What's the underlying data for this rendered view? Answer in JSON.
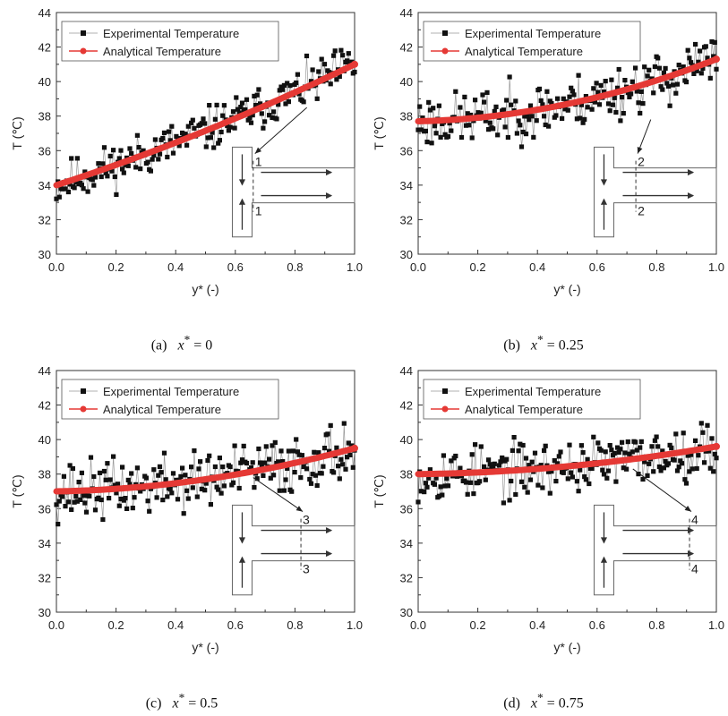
{
  "chart_data": [
    {
      "type": "scatter",
      "caption_id": "(a)",
      "caption_var": "x",
      "caption_value": "0",
      "xlabel": "y* (-)",
      "ylabel": "T (℃)",
      "xlim": [
        0,
        1
      ],
      "ylim": [
        30,
        44
      ],
      "xticks": [
        "0.0",
        "0.2",
        "0.4",
        "0.6",
        "0.8",
        "1.0"
      ],
      "yticks": [
        "30",
        "32",
        "34",
        "36",
        "38",
        "40",
        "42",
        "44"
      ],
      "legend": [
        "Experimental Temperature",
        "Analytical Temperature"
      ],
      "legend_position": "top-left",
      "analytical": {
        "a": 34.0,
        "b": 5.6,
        "c": 1.4
      },
      "experimental": {
        "noise": 0.45,
        "seed": 11
      },
      "marker": "1",
      "annot_target": [
        0.66,
        33.6
      ],
      "annot_arrow_from": [
        0.84,
        38.5
      ],
      "colors": {
        "experimental": "#111111",
        "analytical": "#e53935"
      }
    },
    {
      "type": "scatter",
      "caption_id": "(b)",
      "caption_var": "x",
      "caption_value": "0.25",
      "xlabel": "y* (-)",
      "ylabel": "T (℃)",
      "xlim": [
        0,
        1
      ],
      "ylim": [
        30,
        44
      ],
      "xticks": [
        "0.0",
        "0.2",
        "0.4",
        "0.6",
        "0.8",
        "1.0"
      ],
      "yticks": [
        "30",
        "32",
        "34",
        "36",
        "38",
        "40",
        "42",
        "44"
      ],
      "legend": [
        "Experimental Temperature",
        "Analytical Temperature"
      ],
      "legend_position": "top-left",
      "analytical": {
        "a": 37.7,
        "b": 0.4,
        "c": 3.2
      },
      "experimental": {
        "noise": 0.55,
        "seed": 23
      },
      "marker": "2",
      "annot_target": [
        0.73,
        34.2
      ],
      "annot_arrow_from": [
        0.78,
        37.8
      ],
      "colors": {
        "experimental": "#111111",
        "analytical": "#e53935"
      }
    },
    {
      "type": "scatter",
      "caption_id": "(c)",
      "caption_var": "x",
      "caption_value": "0.5",
      "xlabel": "y* (-)",
      "ylabel": "T (℃)",
      "xlim": [
        0,
        1
      ],
      "ylim": [
        30,
        44
      ],
      "xticks": [
        "0.0",
        "0.2",
        "0.4",
        "0.6",
        "0.8",
        "1.0"
      ],
      "yticks": [
        "30",
        "32",
        "34",
        "36",
        "38",
        "40",
        "42",
        "44"
      ],
      "legend": [
        "Experimental Temperature",
        "Analytical Temperature"
      ],
      "legend_position": "top-left",
      "analytical": {
        "a": 37.0,
        "b": 0.3,
        "c": 2.2
      },
      "experimental": {
        "noise": 0.6,
        "seed": 37
      },
      "marker": "3",
      "annot_target": [
        0.82,
        34.2
      ],
      "annot_arrow_from": [
        0.66,
        37.8
      ],
      "colors": {
        "experimental": "#111111",
        "analytical": "#e53935"
      }
    },
    {
      "type": "scatter",
      "caption_id": "(d)",
      "caption_var": "x",
      "caption_value": "0.75",
      "xlabel": "y* (-)",
      "ylabel": "T (℃)",
      "xlim": [
        0,
        1
      ],
      "ylim": [
        30,
        44
      ],
      "xticks": [
        "0.0",
        "0.2",
        "0.4",
        "0.6",
        "0.8",
        "1.0"
      ],
      "yticks": [
        "30",
        "32",
        "34",
        "36",
        "38",
        "40",
        "42",
        "44"
      ],
      "legend": [
        "Experimental Temperature",
        "Analytical Temperature"
      ],
      "legend_position": "top-left",
      "analytical": {
        "a": 38.0,
        "b": 0.2,
        "c": 1.4
      },
      "experimental": {
        "noise": 0.55,
        "seed": 53
      },
      "marker": "4",
      "annot_target": [
        0.91,
        34.2
      ],
      "annot_arrow_from": [
        0.72,
        38.3
      ],
      "colors": {
        "experimental": "#111111",
        "analytical": "#e53935"
      }
    }
  ]
}
